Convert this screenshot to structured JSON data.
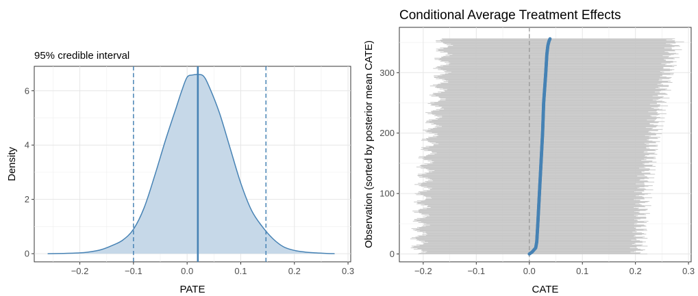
{
  "chart_data": [
    {
      "type": "area",
      "title": "95% credible interval",
      "xlabel": "PATE",
      "ylabel": "Density",
      "xlim": [
        -0.285,
        0.305
      ],
      "ylim": [
        -0.3,
        6.9
      ],
      "x_ticks": [
        -0.2,
        -0.1,
        0.0,
        0.1,
        0.2,
        0.3
      ],
      "x_tick_labels": [
        "−0.2",
        "−0.1",
        "0.0",
        "0.1",
        "0.2",
        "0.3"
      ],
      "y_ticks": [
        0,
        2,
        4,
        6
      ],
      "y_tick_labels": [
        "0",
        "2",
        "4",
        "6"
      ],
      "grid": true,
      "mean_line": 0.02,
      "interval_lines": [
        -0.1,
        0.147
      ],
      "colors": {
        "line": "#4682b4",
        "fill": "#c6d8e8"
      },
      "series": [
        {
          "x": [
            -0.26,
            -0.23,
            -0.2,
            -0.18,
            -0.16,
            -0.14,
            -0.12,
            -0.1,
            -0.08,
            -0.06,
            -0.04,
            -0.02,
            -0.01,
            0.0,
            0.01,
            0.02,
            0.03,
            0.04,
            0.06,
            0.08,
            0.1,
            0.12,
            0.14,
            0.16,
            0.18,
            0.2,
            0.22,
            0.24,
            0.26,
            0.275
          ],
          "y": [
            0.0,
            0.01,
            0.03,
            0.07,
            0.15,
            0.3,
            0.5,
            0.9,
            1.7,
            2.9,
            4.2,
            5.4,
            6.0,
            6.5,
            6.58,
            6.6,
            6.55,
            6.2,
            5.2,
            3.9,
            2.6,
            1.6,
            1.0,
            0.55,
            0.25,
            0.12,
            0.06,
            0.03,
            0.01,
            0.0
          ]
        }
      ]
    },
    {
      "type": "scatter",
      "title": "Conditional Average Treatment Effects",
      "xlabel": "CATE",
      "ylabel": "Observation (sorted by posterior mean CATE)",
      "xlim": [
        -0.245,
        0.305
      ],
      "ylim": [
        -13,
        375
      ],
      "x_ticks": [
        -0.2,
        -0.1,
        0.0,
        0.1,
        0.2,
        0.3
      ],
      "x_tick_labels": [
        "−0.2",
        "−0.1",
        "0.0",
        "0.1",
        "0.2",
        "0.3"
      ],
      "y_ticks": [
        0,
        100,
        200,
        300
      ],
      "y_tick_labels": [
        "0",
        "100",
        "200",
        "300"
      ],
      "grid": true,
      "reference_line": 0.0,
      "n_observations": 356,
      "colors": {
        "points": "#4682b4",
        "intervals": "#c8c8c8",
        "reference": "#999999"
      },
      "mean_curve": {
        "index": [
          0,
          3,
          10,
          20,
          50,
          100,
          150,
          200,
          250,
          300,
          330,
          345,
          352,
          356
        ],
        "mean": [
          0.0,
          0.005,
          0.012,
          0.014,
          0.016,
          0.019,
          0.022,
          0.025,
          0.027,
          0.031,
          0.033,
          0.035,
          0.037,
          0.039
        ]
      },
      "interval_bounds": {
        "index": [
          0,
          50,
          100,
          150,
          200,
          250,
          300,
          356
        ],
        "lower": [
          -0.21,
          -0.205,
          -0.2,
          -0.195,
          -0.185,
          -0.175,
          -0.165,
          -0.16
        ],
        "upper": [
          0.205,
          0.21,
          0.215,
          0.225,
          0.235,
          0.245,
          0.26,
          0.275
        ]
      }
    }
  ]
}
